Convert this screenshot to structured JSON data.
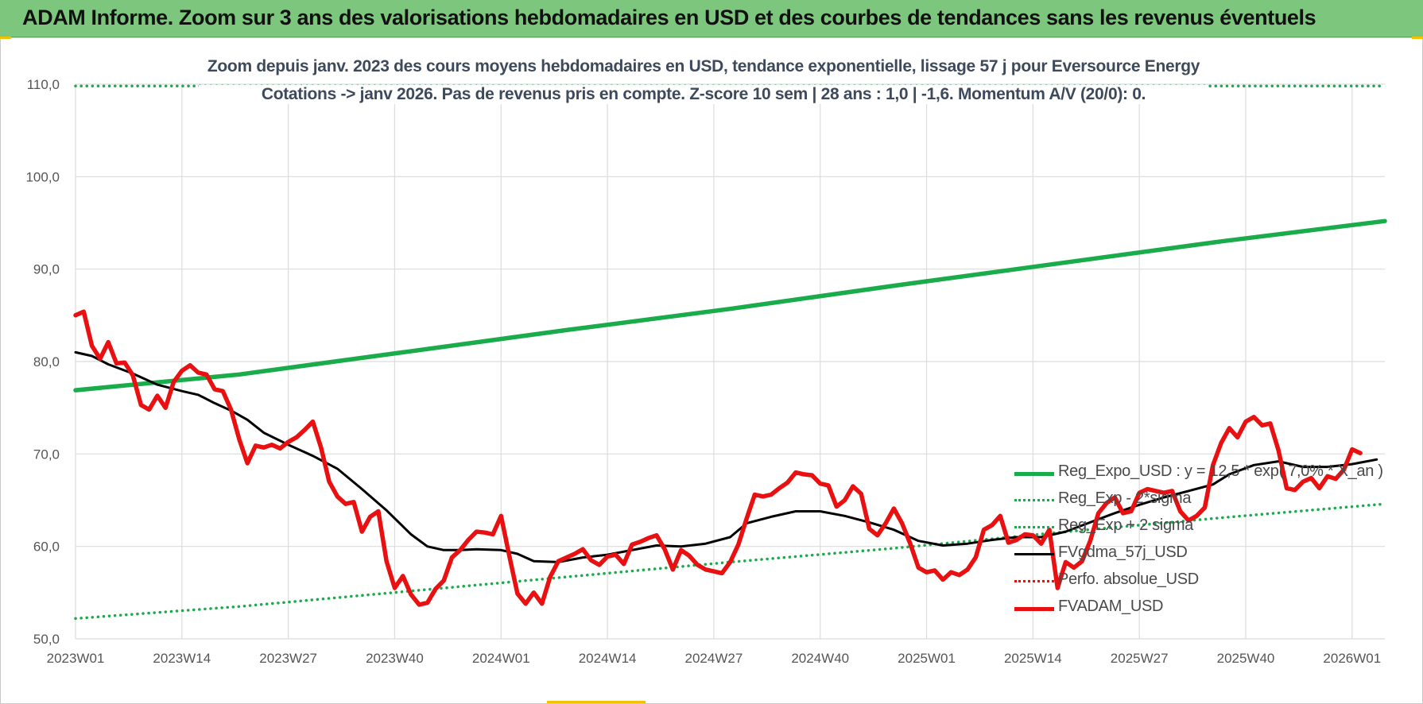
{
  "header": {
    "title": "ADAM Informe. Zoom sur 3 ans des valorisations hebdomadaires en USD et des courbes de tendances sans les revenus éventuels"
  },
  "chart_data": {
    "type": "line",
    "title_line1": "Zoom depuis janv. 2023 des cours moyens hebdomadaires en USD, tendance exponentielle, lissage 57 j pour Eversource Energy",
    "title_line2": "Cotations -> janv 2026. Pas de revenus pris en compte. Z-score 10 sem | 28 ans : 1,0 | -1,6. Momentum A/V (20/0): 0.",
    "x_tick_labels": [
      "2023W01",
      "2023W14",
      "2023W27",
      "2023W40",
      "2024W01",
      "2024W14",
      "2024W27",
      "2024W40",
      "2025W01",
      "2025W14",
      "2025W27",
      "2025W40",
      "2026W01"
    ],
    "x_tick_weeks": [
      0,
      13,
      26,
      39,
      52,
      65,
      78,
      91,
      104,
      117,
      130,
      143,
      156
    ],
    "y_tick_labels": [
      "50,0",
      "60,0",
      "70,0",
      "80,0",
      "90,0",
      "100,0",
      "110,0"
    ],
    "ylim": [
      50,
      110
    ],
    "xlim": [
      0,
      160
    ],
    "grid": true,
    "legend_position": "bottom-right",
    "series": [
      {
        "name": "Reg_Expo_USD : y = 12,5 * exp( 7,0% * X_an )",
        "color": "#1aab4b",
        "style": "solid-thick",
        "points": [
          [
            0,
            76.9
          ],
          [
            20,
            78.6
          ],
          [
            40,
            81.0
          ],
          [
            60,
            83.4
          ],
          [
            80,
            85.7
          ],
          [
            100,
            88.2
          ],
          [
            120,
            90.6
          ],
          [
            140,
            93.0
          ],
          [
            160,
            95.2
          ]
        ]
      },
      {
        "name": "Reg_Exp - 2*sigma",
        "color": "#1aab4b",
        "style": "dotted",
        "points": [
          [
            0,
            52.2
          ],
          [
            20,
            53.5
          ],
          [
            40,
            55.1
          ],
          [
            60,
            56.7
          ],
          [
            80,
            58.3
          ],
          [
            100,
            59.8
          ],
          [
            120,
            61.5
          ],
          [
            140,
            63.1
          ],
          [
            160,
            64.6
          ]
        ]
      },
      {
        "name": "Reg_Exp + 2 sigma",
        "color": "#1aab4b",
        "style": "dotted",
        "points": [
          [
            0,
            109.8
          ],
          [
            160,
            109.8
          ]
        ]
      },
      {
        "name": "FVgdma_57j_USD",
        "color": "#000000",
        "style": "solid",
        "points": [
          [
            0,
            81.0
          ],
          [
            2,
            80.6
          ],
          [
            4,
            79.7
          ],
          [
            7,
            78.7
          ],
          [
            10,
            77.5
          ],
          [
            13,
            76.8
          ],
          [
            15,
            76.4
          ],
          [
            17,
            75.5
          ],
          [
            19,
            74.7
          ],
          [
            21,
            73.7
          ],
          [
            23,
            72.3
          ],
          [
            26,
            71.0
          ],
          [
            29,
            69.8
          ],
          [
            32,
            68.4
          ],
          [
            35,
            66.2
          ],
          [
            38,
            63.9
          ],
          [
            41,
            61.3
          ],
          [
            43,
            60.0
          ],
          [
            45,
            59.6
          ],
          [
            47,
            59.6
          ],
          [
            49,
            59.7
          ],
          [
            52,
            59.6
          ],
          [
            54,
            59.2
          ],
          [
            56,
            58.4
          ],
          [
            59,
            58.3
          ],
          [
            62,
            58.8
          ],
          [
            65,
            59.1
          ],
          [
            68,
            59.6
          ],
          [
            71,
            60.1
          ],
          [
            74,
            60.0
          ],
          [
            77,
            60.3
          ],
          [
            80,
            61.0
          ],
          [
            82,
            62.5
          ],
          [
            85,
            63.2
          ],
          [
            88,
            63.8
          ],
          [
            91,
            63.8
          ],
          [
            94,
            63.3
          ],
          [
            97,
            62.6
          ],
          [
            100,
            61.8
          ],
          [
            103,
            60.6
          ],
          [
            106,
            60.1
          ],
          [
            109,
            60.3
          ],
          [
            112,
            60.7
          ],
          [
            115,
            61.0
          ],
          [
            118,
            61.0
          ],
          [
            121,
            61.6
          ],
          [
            124,
            62.6
          ],
          [
            127,
            63.6
          ],
          [
            130,
            64.5
          ],
          [
            133,
            65.3
          ],
          [
            136,
            66.0
          ],
          [
            139,
            66.7
          ],
          [
            141,
            67.8
          ],
          [
            144,
            68.8
          ],
          [
            147,
            69.2
          ],
          [
            150,
            68.6
          ],
          [
            153,
            68.6
          ],
          [
            156,
            68.9
          ],
          [
            159,
            69.4
          ]
        ]
      },
      {
        "name": "Perfo. absolue_USD",
        "color": "#e81010",
        "style": "dotted",
        "points": []
      },
      {
        "name": "FVADAM_USD",
        "color": "#e81010",
        "style": "solid-thick",
        "points": [
          [
            0,
            85.0
          ],
          [
            1,
            85.4
          ],
          [
            2,
            81.7
          ],
          [
            3,
            80.3
          ],
          [
            4,
            82.1
          ],
          [
            5,
            79.8
          ],
          [
            6,
            79.9
          ],
          [
            7,
            78.5
          ],
          [
            8,
            75.3
          ],
          [
            9,
            74.8
          ],
          [
            10,
            76.3
          ],
          [
            11,
            75.0
          ],
          [
            12,
            77.8
          ],
          [
            13,
            79.0
          ],
          [
            14,
            79.6
          ],
          [
            15,
            78.8
          ],
          [
            16,
            78.6
          ],
          [
            17,
            77.0
          ],
          [
            18,
            76.8
          ],
          [
            19,
            74.8
          ],
          [
            20,
            71.6
          ],
          [
            21,
            69.0
          ],
          [
            22,
            70.9
          ],
          [
            23,
            70.7
          ],
          [
            24,
            71.0
          ],
          [
            25,
            70.6
          ],
          [
            26,
            71.3
          ],
          [
            27,
            71.8
          ],
          [
            28,
            72.6
          ],
          [
            29,
            73.5
          ],
          [
            30,
            70.7
          ],
          [
            31,
            67.0
          ],
          [
            32,
            65.4
          ],
          [
            33,
            64.6
          ],
          [
            34,
            64.8
          ],
          [
            35,
            61.6
          ],
          [
            36,
            63.2
          ],
          [
            37,
            63.8
          ],
          [
            38,
            58.4
          ],
          [
            39,
            55.5
          ],
          [
            40,
            56.8
          ],
          [
            41,
            54.8
          ],
          [
            42,
            53.7
          ],
          [
            43,
            53.9
          ],
          [
            44,
            55.4
          ],
          [
            45,
            56.3
          ],
          [
            46,
            58.8
          ],
          [
            47,
            59.6
          ],
          [
            48,
            60.7
          ],
          [
            49,
            61.6
          ],
          [
            50,
            61.5
          ],
          [
            51,
            61.3
          ],
          [
            52,
            63.3
          ],
          [
            53,
            59.0
          ],
          [
            54,
            54.9
          ],
          [
            55,
            53.8
          ],
          [
            56,
            55.0
          ],
          [
            57,
            53.8
          ],
          [
            58,
            56.7
          ],
          [
            59,
            58.4
          ],
          [
            60,
            58.8
          ],
          [
            61,
            59.2
          ],
          [
            62,
            59.7
          ],
          [
            63,
            58.5
          ],
          [
            64,
            58.0
          ],
          [
            65,
            58.9
          ],
          [
            66,
            59.1
          ],
          [
            67,
            58.1
          ],
          [
            68,
            60.2
          ],
          [
            69,
            60.5
          ],
          [
            70,
            60.9
          ],
          [
            71,
            61.2
          ],
          [
            72,
            59.7
          ],
          [
            73,
            57.5
          ],
          [
            74,
            59.6
          ],
          [
            75,
            59.0
          ],
          [
            76,
            58.0
          ],
          [
            77,
            57.5
          ],
          [
            78,
            57.3
          ],
          [
            79,
            57.1
          ],
          [
            80,
            58.3
          ],
          [
            81,
            60.2
          ],
          [
            82,
            63.0
          ],
          [
            83,
            65.6
          ],
          [
            84,
            65.4
          ],
          [
            85,
            65.6
          ],
          [
            86,
            66.3
          ],
          [
            87,
            66.9
          ],
          [
            88,
            68.0
          ],
          [
            89,
            67.8
          ],
          [
            90,
            67.7
          ],
          [
            91,
            66.8
          ],
          [
            92,
            66.6
          ],
          [
            93,
            64.3
          ],
          [
            94,
            65.0
          ],
          [
            95,
            66.5
          ],
          [
            96,
            65.7
          ],
          [
            97,
            61.9
          ],
          [
            98,
            61.2
          ],
          [
            99,
            62.5
          ],
          [
            100,
            64.1
          ],
          [
            101,
            62.5
          ],
          [
            102,
            60.3
          ],
          [
            103,
            57.7
          ],
          [
            104,
            57.2
          ],
          [
            105,
            57.4
          ],
          [
            106,
            56.4
          ],
          [
            107,
            57.2
          ],
          [
            108,
            56.9
          ],
          [
            109,
            57.5
          ],
          [
            110,
            58.8
          ],
          [
            111,
            61.8
          ],
          [
            112,
            62.3
          ],
          [
            113,
            63.3
          ],
          [
            114,
            60.4
          ],
          [
            115,
            60.7
          ],
          [
            116,
            61.3
          ],
          [
            117,
            61.2
          ],
          [
            118,
            60.3
          ],
          [
            119,
            61.8
          ],
          [
            120,
            55.5
          ],
          [
            121,
            58.3
          ],
          [
            122,
            57.7
          ],
          [
            123,
            58.4
          ],
          [
            124,
            60.6
          ],
          [
            125,
            63.6
          ],
          [
            126,
            64.7
          ],
          [
            127,
            65.3
          ],
          [
            128,
            63.6
          ],
          [
            129,
            63.8
          ],
          [
            130,
            65.8
          ],
          [
            131,
            66.2
          ],
          [
            132,
            66.0
          ],
          [
            133,
            65.8
          ],
          [
            134,
            66.0
          ],
          [
            135,
            63.8
          ],
          [
            136,
            62.8
          ],
          [
            137,
            63.3
          ],
          [
            138,
            64.2
          ],
          [
            139,
            68.8
          ],
          [
            140,
            71.2
          ],
          [
            141,
            72.8
          ],
          [
            142,
            71.8
          ],
          [
            143,
            73.5
          ],
          [
            144,
            74.0
          ],
          [
            145,
            73.1
          ],
          [
            146,
            73.3
          ],
          [
            147,
            70.4
          ],
          [
            148,
            66.3
          ],
          [
            149,
            66.1
          ],
          [
            150,
            67.0
          ],
          [
            151,
            67.4
          ],
          [
            152,
            66.3
          ],
          [
            153,
            67.6
          ],
          [
            154,
            67.3
          ],
          [
            155,
            68.3
          ],
          [
            156,
            70.5
          ],
          [
            157,
            70.1
          ]
        ]
      }
    ]
  }
}
